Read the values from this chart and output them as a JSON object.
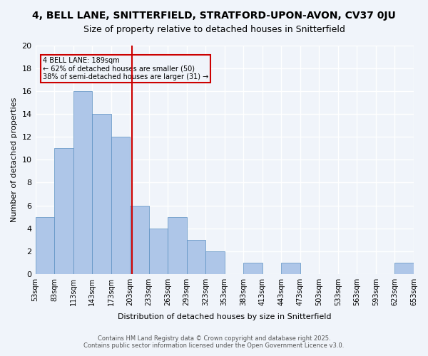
{
  "title1": "4, BELL LANE, SNITTERFIELD, STRATFORD-UPON-AVON, CV37 0JU",
  "title2": "Size of property relative to detached houses in Snitterfield",
  "xlabel": "Distribution of detached houses by size in Snitterfield",
  "ylabel": "Number of detached properties",
  "bar_values": [
    5,
    11,
    16,
    14,
    12,
    6,
    4,
    5,
    3,
    2,
    0,
    1,
    0,
    1,
    0,
    0,
    0,
    0,
    0,
    1
  ],
  "bar_labels": [
    "53sqm",
    "83sqm",
    "113sqm",
    "143sqm",
    "173sqm",
    "203sqm",
    "233sqm",
    "263sqm",
    "293sqm",
    "323sqm",
    "353sqm",
    "383sqm",
    "413sqm",
    "443sqm",
    "473sqm",
    "503sqm",
    "533sqm",
    "563sqm",
    "593sqm",
    "623sqm",
    "653sqm"
  ],
  "bar_color": "#aec6e8",
  "bar_edge_color": "#5a8fc2",
  "vline_x": 4.6,
  "vline_color": "#cc0000",
  "annotation_text": "4 BELL LANE: 189sqm\n← 62% of detached houses are smaller (50)\n38% of semi-detached houses are larger (31) →",
  "annotation_box_edge": "#cc0000",
  "ylim": [
    0,
    20
  ],
  "yticks": [
    0,
    2,
    4,
    6,
    8,
    10,
    12,
    14,
    16,
    18,
    20
  ],
  "footer1": "Contains HM Land Registry data © Crown copyright and database right 2025.",
  "footer2": "Contains public sector information licensed under the Open Government Licence v3.0.",
  "background_color": "#f0f4fa",
  "grid_color": "#ffffff",
  "title_fontsize": 10,
  "subtitle_fontsize": 9
}
